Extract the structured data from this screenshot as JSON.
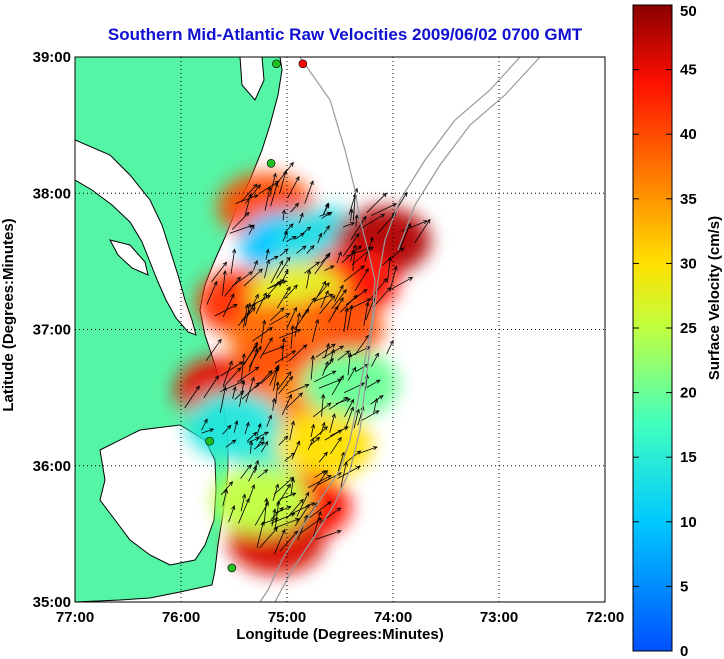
{
  "title": "Southern Mid-Atlantic Raw Velocities 2009/06/02 0700 GMT",
  "map": {
    "lon_range": [
      -77,
      -72
    ],
    "lat_range": [
      35,
      39
    ],
    "land_color": "#55f5a5",
    "coast_color": "#000000",
    "bathymetry_color": "#9a9a9a"
  },
  "axes": {
    "xlabel": "Longitude (Degrees:Minutes)",
    "ylabel": "Latitude (Degrees:Minutes)",
    "x_ticks": [
      {
        "value": -77,
        "label": "77:00"
      },
      {
        "value": -76,
        "label": "76:00"
      },
      {
        "value": -75,
        "label": "75:00"
      },
      {
        "value": -74,
        "label": "74:00"
      },
      {
        "value": -73,
        "label": "73:00"
      },
      {
        "value": -72,
        "label": "72:00"
      }
    ],
    "y_ticks": [
      {
        "value": 35,
        "label": "35:00"
      },
      {
        "value": 36,
        "label": "36:00"
      },
      {
        "value": 37,
        "label": "37:00"
      },
      {
        "value": 38,
        "label": "38:00"
      },
      {
        "value": 39,
        "label": "39:00"
      }
    ],
    "grid": "dotted"
  },
  "colorbar": {
    "label": "Surface Velocity (cm/s)",
    "min": 0,
    "max": 50,
    "ticks": [
      {
        "value": 0,
        "label": "0"
      },
      {
        "value": 5,
        "label": "5"
      },
      {
        "value": 10,
        "label": "10"
      },
      {
        "value": 15,
        "label": "15"
      },
      {
        "value": 20,
        "label": "20"
      },
      {
        "value": 25,
        "label": "25"
      },
      {
        "value": 30,
        "label": "30"
      },
      {
        "value": 35,
        "label": "35"
      },
      {
        "value": 40,
        "label": "40"
      },
      {
        "value": 45,
        "label": "45"
      },
      {
        "value": 50,
        "label": "50"
      }
    ],
    "colormap": "jet"
  },
  "stations": [
    {
      "name": "station-north",
      "lon": -74.85,
      "lat": 38.95,
      "color": "#ff0000"
    },
    {
      "name": "station-cape-may",
      "lon": -75.1,
      "lat": 38.95,
      "color": "#20c020"
    },
    {
      "name": "station-assateague",
      "lon": -75.15,
      "lat": 38.22,
      "color": "#20c020"
    },
    {
      "name": "station-duck",
      "lon": -75.73,
      "lat": 36.18,
      "color": "#20c020"
    },
    {
      "name": "station-hatteras",
      "lon": -75.52,
      "lat": 35.25,
      "color": "#20c020"
    }
  ],
  "velocity_patches": [
    {
      "lon": -75.2,
      "lat": 37.9,
      "speed": 40
    },
    {
      "lon": -75.0,
      "lat": 37.62,
      "speed": 10
    },
    {
      "lon": -74.65,
      "lat": 37.65,
      "speed": 13
    },
    {
      "lon": -74.1,
      "lat": 37.65,
      "speed": 48
    },
    {
      "lon": -74.4,
      "lat": 37.35,
      "speed": 44
    },
    {
      "lon": -75.4,
      "lat": 37.2,
      "speed": 42
    },
    {
      "lon": -74.9,
      "lat": 37.25,
      "speed": 28
    },
    {
      "lon": -74.55,
      "lat": 37.0,
      "speed": 40
    },
    {
      "lon": -75.1,
      "lat": 36.95,
      "speed": 38
    },
    {
      "lon": -75.6,
      "lat": 36.55,
      "speed": 45
    },
    {
      "lon": -75.05,
      "lat": 36.7,
      "speed": 40
    },
    {
      "lon": -74.8,
      "lat": 36.45,
      "speed": 36
    },
    {
      "lon": -74.4,
      "lat": 36.6,
      "speed": 20
    },
    {
      "lon": -75.5,
      "lat": 36.3,
      "speed": 14
    },
    {
      "lon": -75.0,
      "lat": 36.05,
      "speed": 15
    },
    {
      "lon": -74.65,
      "lat": 36.15,
      "speed": 30
    },
    {
      "lon": -74.85,
      "lat": 35.7,
      "speed": 44
    },
    {
      "lon": -75.1,
      "lat": 35.45,
      "speed": 46
    },
    {
      "lon": -75.25,
      "lat": 35.75,
      "speed": 25
    }
  ]
}
